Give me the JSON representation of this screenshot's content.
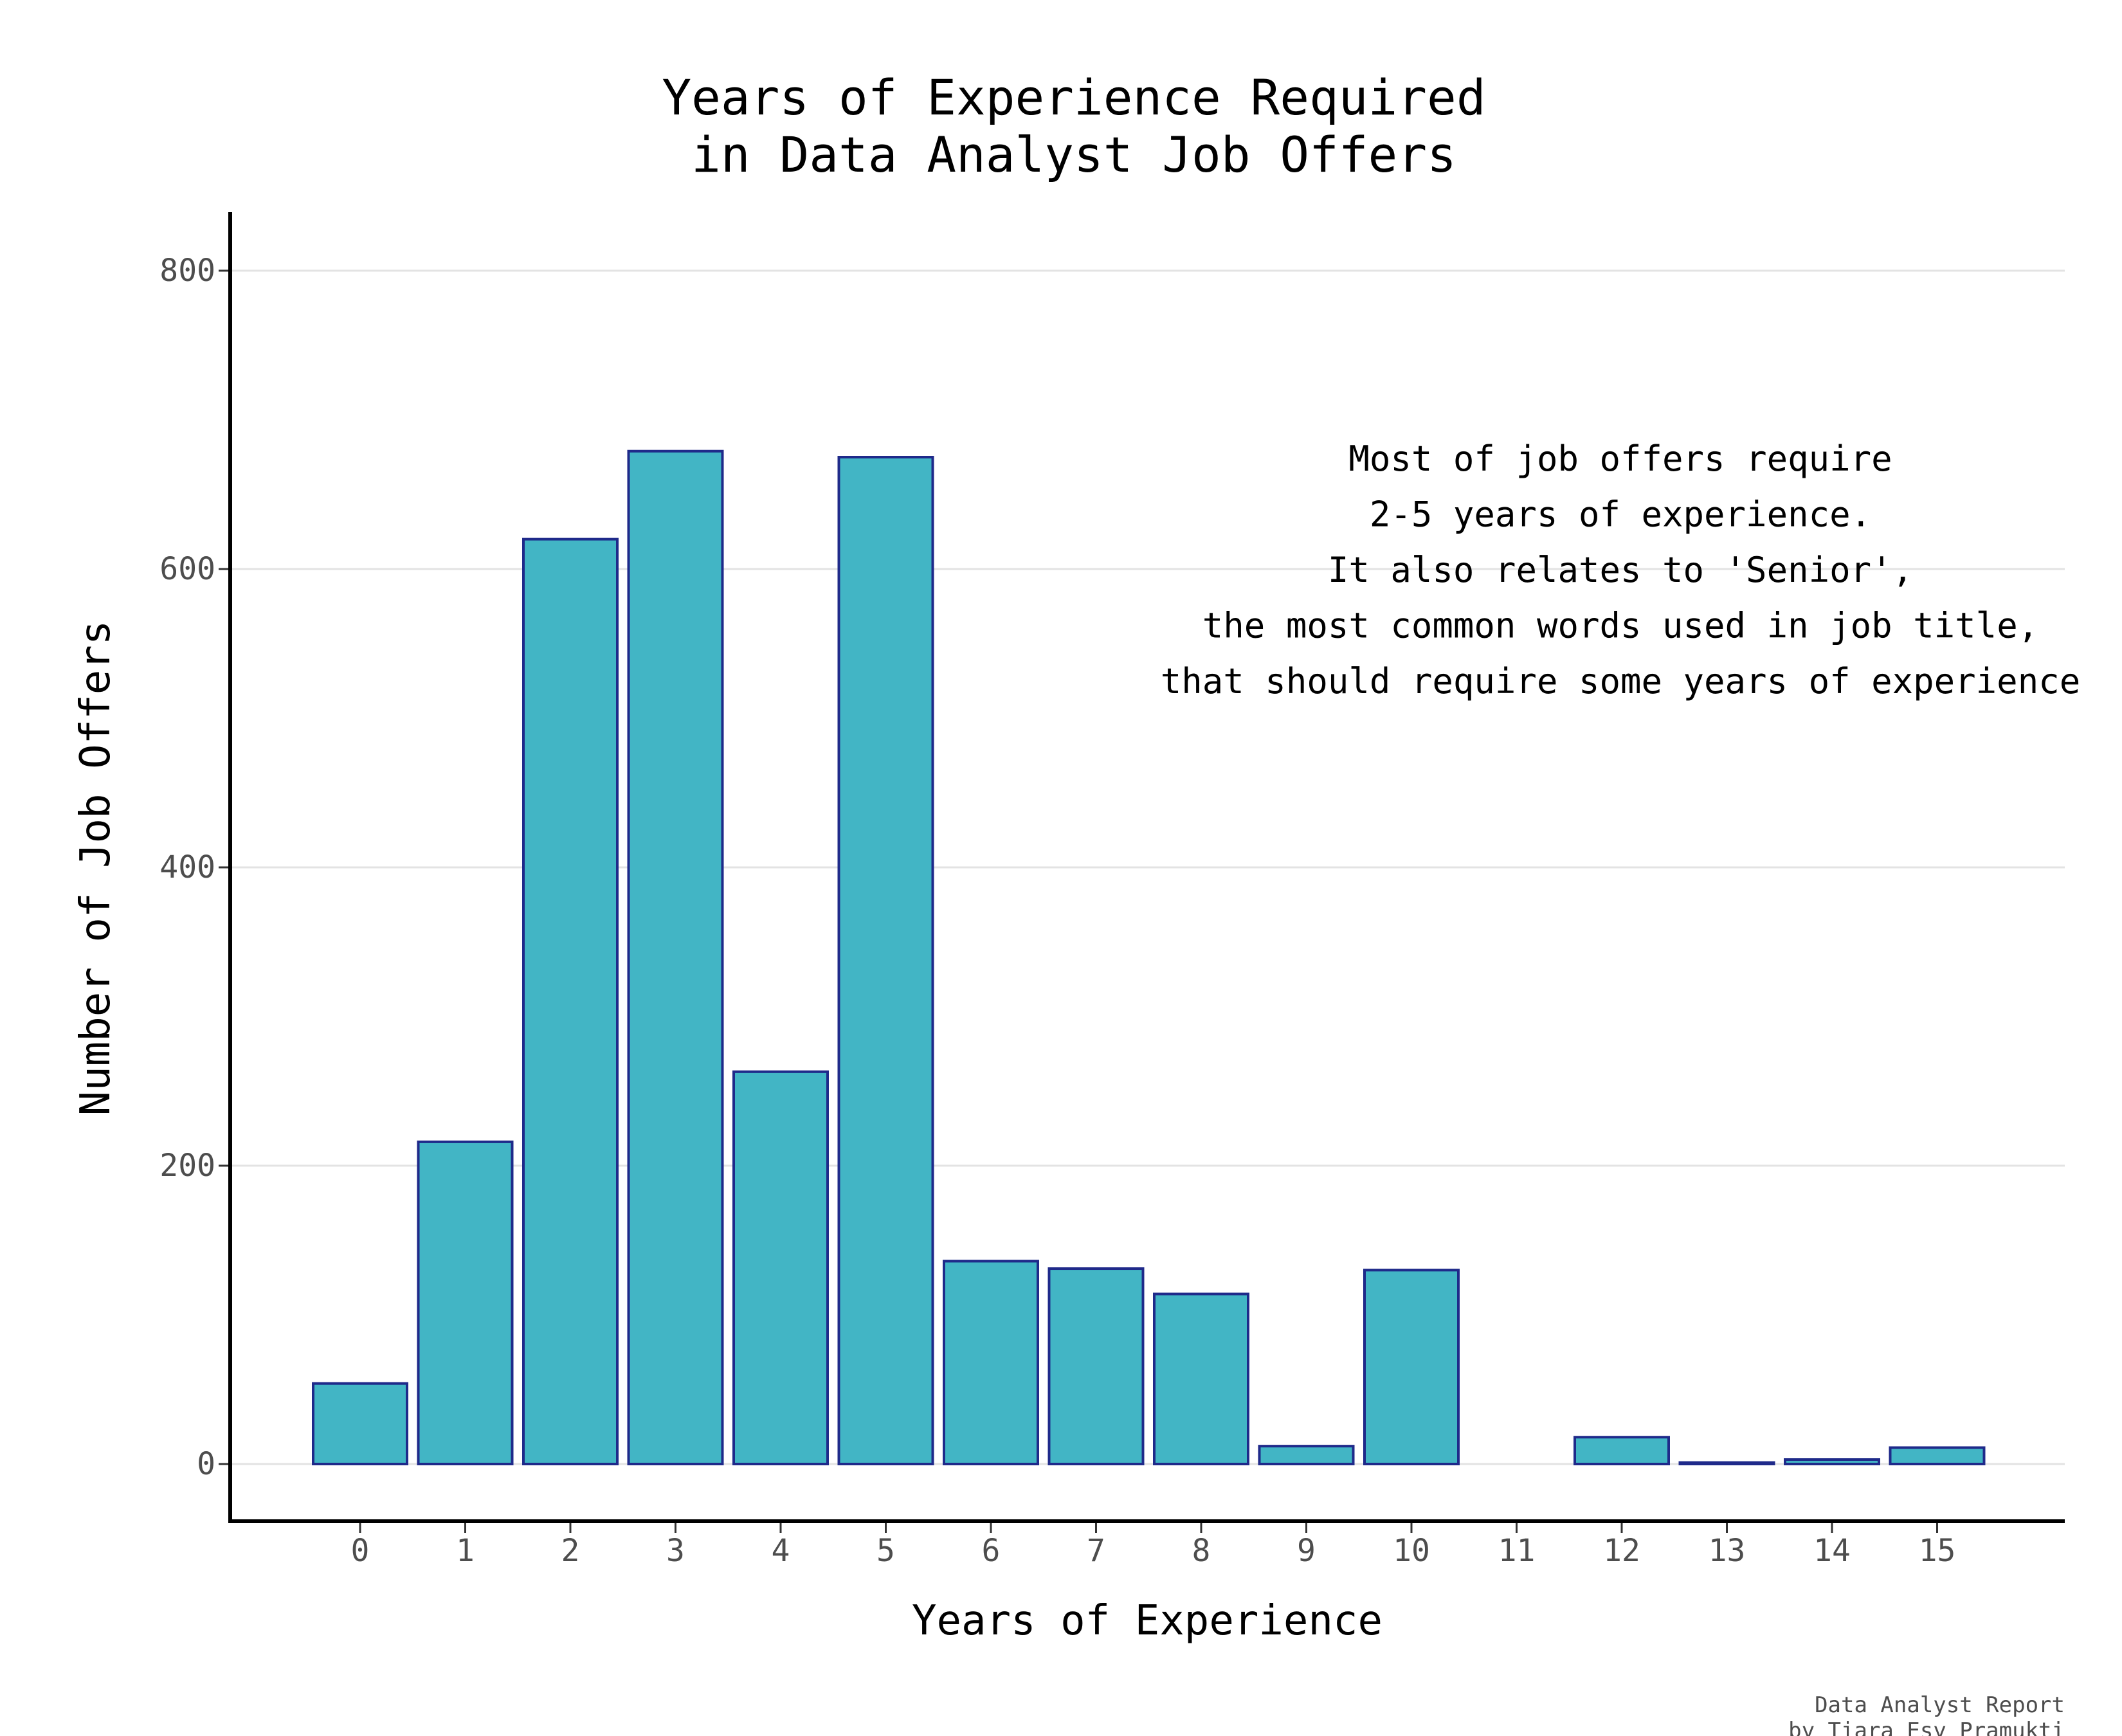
{
  "chart_data": {
    "type": "bar",
    "title": [
      "Years of Experience Required",
      "in Data Analyst Job Offers"
    ],
    "xlabel": "Years of Experience",
    "ylabel": "Number of Job Offers",
    "categories": [
      "0",
      "1",
      "2",
      "3",
      "4",
      "5",
      "6",
      "7",
      "8",
      "9",
      "10",
      "11",
      "12",
      "13",
      "14",
      "15"
    ],
    "values": [
      54,
      216,
      620,
      679,
      263,
      675,
      136,
      131,
      114,
      12,
      130,
      0,
      18,
      1,
      3,
      11
    ],
    "ylim": [
      -38,
      838
    ],
    "yticks": [
      0,
      200,
      400,
      600,
      800
    ],
    "grid": true,
    "bar_fill": "#42B5C5",
    "bar_stroke": "#1F2A8A",
    "annotation": [
      "Most of job offers require",
      "2-5 years of experience.",
      "It also relates to 'Senior',",
      "the most common words used in job title,",
      "that should require some years of experience"
    ],
    "caption": [
      "Data Analyst Report",
      "by Tiara Esy Pramukti"
    ]
  }
}
